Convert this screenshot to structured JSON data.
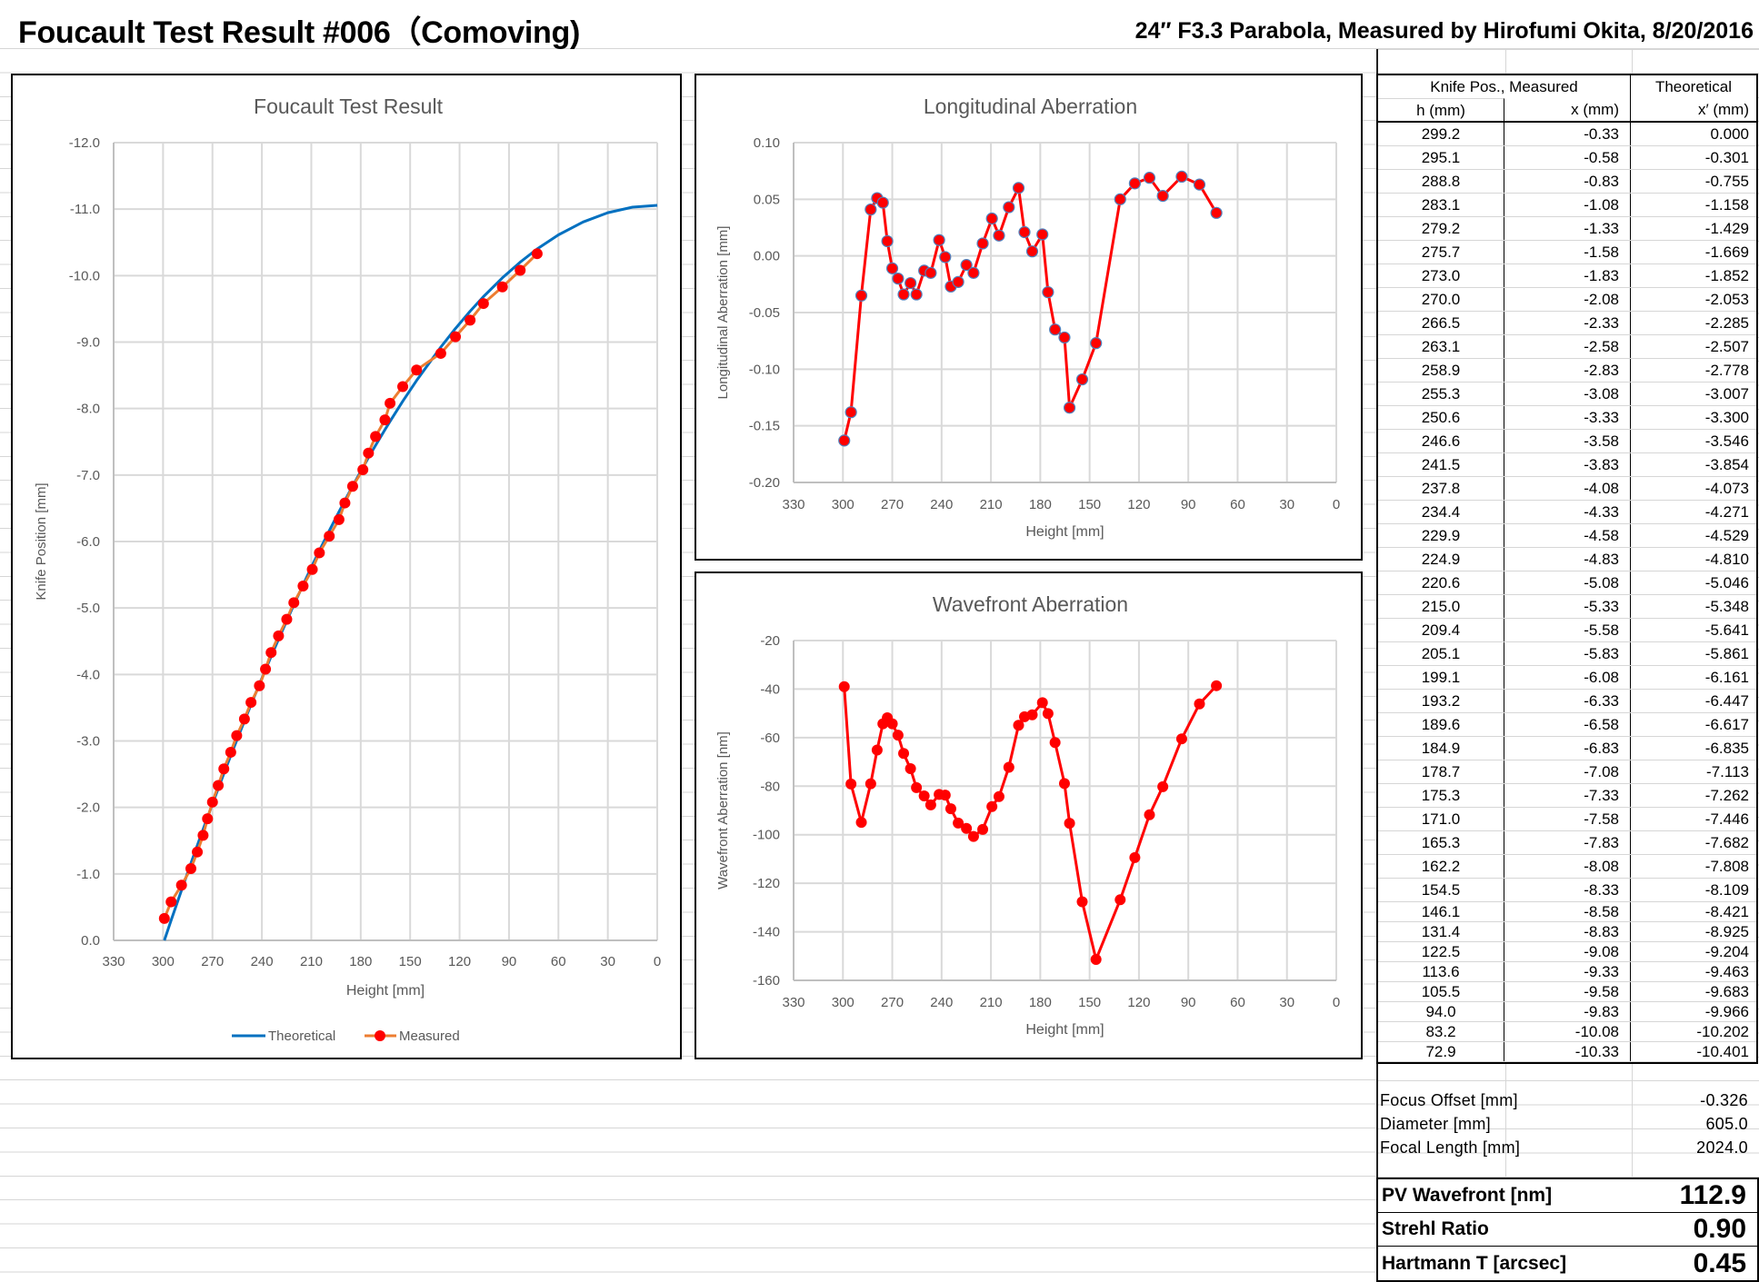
{
  "sheet": {
    "title": "Foucault Test Result #006（Comoving)",
    "subtitle": "24″ F3.3 Parabola, Measured by Hirofumi Okita, 8/20/2016"
  },
  "chart_data": [
    {
      "type": "line",
      "title": "Foucault Test Result",
      "xlabel": "Height [mm]",
      "ylabel": "Knife Position [mm]",
      "xlim": [
        330,
        0
      ],
      "ylim": [
        0,
        -12
      ],
      "x_reversed": true,
      "grid": true,
      "legend_position": "bottom",
      "x_tick_labels": [
        "330",
        "300",
        "270",
        "240",
        "210",
        "180",
        "150",
        "120",
        "90",
        "60",
        "30",
        "0"
      ],
      "y_tick_labels": [
        "-12.0",
        "-11.0",
        "-10.0",
        "-9.0",
        "-8.0",
        "-7.0",
        "-6.0",
        "-5.0",
        "-4.0",
        "-3.0",
        "-2.0",
        "-1.0",
        "0.0"
      ],
      "series": [
        {
          "name": "Theoretical",
          "color": "#0070C0",
          "marker": "none",
          "x": [
            299.2,
            295.1,
            288.8,
            283.1,
            279.2,
            275.7,
            273.0,
            270.0,
            266.5,
            263.1,
            258.9,
            255.3,
            250.6,
            246.6,
            241.5,
            237.8,
            234.4,
            229.9,
            224.9,
            220.6,
            215.0,
            209.4,
            205.1,
            199.1,
            193.2,
            189.6,
            184.9,
            178.7,
            175.3,
            171.0,
            165.3,
            162.2,
            154.5,
            146.1,
            131.4,
            122.5,
            113.6,
            105.5,
            94.0,
            83.2,
            72.9,
            60,
            45,
            30,
            15,
            0
          ],
          "y": [
            0.0,
            -0.301,
            -0.755,
            -1.158,
            -1.429,
            -1.669,
            -1.852,
            -2.053,
            -2.285,
            -2.507,
            -2.778,
            -3.007,
            -3.3,
            -3.546,
            -3.854,
            -4.073,
            -4.271,
            -4.529,
            -4.81,
            -5.046,
            -5.348,
            -5.641,
            -5.861,
            -6.161,
            -6.447,
            -6.617,
            -6.835,
            -7.113,
            -7.262,
            -7.446,
            -7.682,
            -7.808,
            -8.109,
            -8.421,
            -8.925,
            -9.204,
            -9.463,
            -9.683,
            -9.966,
            -10.202,
            -10.401,
            -10.613,
            -10.807,
            -10.946,
            -11.03,
            -11.057
          ]
        },
        {
          "name": "Measured",
          "color": "#ED7D31",
          "marker_color": "#FF0000",
          "x": [
            299.2,
            295.1,
            288.8,
            283.1,
            279.2,
            275.7,
            273.0,
            270.0,
            266.5,
            263.1,
            258.9,
            255.3,
            250.6,
            246.6,
            241.5,
            237.8,
            234.4,
            229.9,
            224.9,
            220.6,
            215.0,
            209.4,
            205.1,
            199.1,
            193.2,
            189.6,
            184.9,
            178.7,
            175.3,
            171.0,
            165.3,
            162.2,
            154.5,
            146.1,
            131.4,
            122.5,
            113.6,
            105.5,
            94.0,
            83.2,
            72.9
          ],
          "y": [
            -0.33,
            -0.58,
            -0.83,
            -1.08,
            -1.33,
            -1.58,
            -1.83,
            -2.08,
            -2.33,
            -2.58,
            -2.83,
            -3.08,
            -3.33,
            -3.58,
            -3.83,
            -4.08,
            -4.33,
            -4.58,
            -4.83,
            -5.08,
            -5.33,
            -5.58,
            -5.83,
            -6.08,
            -6.33,
            -6.58,
            -6.83,
            -7.08,
            -7.33,
            -7.58,
            -7.83,
            -8.08,
            -8.33,
            -8.58,
            -8.83,
            -9.08,
            -9.33,
            -9.58,
            -9.83,
            -10.08,
            -10.33
          ]
        }
      ]
    },
    {
      "type": "line",
      "title": "Longitudinal Aberration",
      "xlabel": "Height [mm]",
      "ylabel": "Longitudinal Aberration [mm]",
      "xlim": [
        330,
        0
      ],
      "ylim": [
        -0.2,
        0.1
      ],
      "x_reversed": true,
      "grid": true,
      "x_tick_labels": [
        "330",
        "300",
        "270",
        "240",
        "210",
        "180",
        "150",
        "120",
        "90",
        "60",
        "30",
        "0"
      ],
      "y_tick_labels": [
        "0.10",
        "0.05",
        "0.00",
        "-0.05",
        "-0.10",
        "-0.15",
        "-0.20"
      ],
      "series": [
        {
          "color": "#FF0000",
          "marker_color": "#FF0000",
          "marker_edge": "#4F81BD",
          "x": [
            299.2,
            295.1,
            288.8,
            283.1,
            279.2,
            275.7,
            273.0,
            270.0,
            266.5,
            263.1,
            258.9,
            255.3,
            250.6,
            246.6,
            241.5,
            237.8,
            234.4,
            229.9,
            224.9,
            220.6,
            215.0,
            209.4,
            205.1,
            199.1,
            193.2,
            189.6,
            184.9,
            178.7,
            175.3,
            171.0,
            165.3,
            162.2,
            154.5,
            146.1,
            131.4,
            122.5,
            113.6,
            105.5,
            94.0,
            83.2,
            72.9
          ],
          "y": [
            -0.163,
            -0.138,
            -0.035,
            0.041,
            0.051,
            0.047,
            0.013,
            -0.011,
            -0.02,
            -0.034,
            -0.024,
            -0.034,
            -0.013,
            -0.015,
            0.014,
            -0.001,
            -0.027,
            -0.023,
            -0.008,
            -0.015,
            0.011,
            0.033,
            0.018,
            0.043,
            0.06,
            0.021,
            0.004,
            0.019,
            -0.032,
            -0.065,
            -0.072,
            -0.134,
            -0.109,
            -0.077,
            0.05,
            0.064,
            0.069,
            0.053,
            0.07,
            0.063,
            0.038
          ]
        }
      ]
    },
    {
      "type": "line",
      "title": "Wavefront Aberration",
      "xlabel": "Height [mm]",
      "ylabel": "Wavefront Aberration [nm]",
      "xlim": [
        330,
        0
      ],
      "ylim": [
        -160,
        -20
      ],
      "x_reversed": true,
      "grid": true,
      "x_tick_labels": [
        "330",
        "300",
        "270",
        "240",
        "210",
        "180",
        "150",
        "120",
        "90",
        "60",
        "30",
        "0"
      ],
      "y_tick_labels": [
        "-20",
        "-40",
        "-60",
        "-80",
        "-100",
        "-120",
        "-140",
        "-160"
      ],
      "series": [
        {
          "color": "#FF0000",
          "marker_color": "#FF0000",
          "x": [
            299.2,
            295.1,
            288.8,
            283.1,
            279.2,
            275.7,
            273.0,
            270.0,
            266.5,
            263.1,
            258.9,
            255.3,
            250.6,
            246.6,
            241.5,
            237.8,
            234.4,
            229.9,
            224.9,
            220.6,
            215.0,
            209.4,
            205.1,
            199.1,
            193.2,
            189.6,
            184.9,
            178.7,
            175.3,
            171.0,
            165.3,
            162.2,
            154.5,
            146.1,
            131.4,
            122.5,
            113.6,
            105.5,
            94.0,
            83.2,
            72.9
          ],
          "y": [
            -39.0,
            -79.1,
            -94.9,
            -79.0,
            -65.1,
            -54.3,
            -51.8,
            -54.3,
            -59.0,
            -66.5,
            -72.8,
            -80.6,
            -84.0,
            -87.7,
            -83.4,
            -83.7,
            -89.3,
            -95.2,
            -97.4,
            -100.7,
            -97.8,
            -88.4,
            -84.3,
            -72.2,
            -54.9,
            -51.4,
            -50.6,
            -45.6,
            -50.1,
            -62.0,
            -78.9,
            -95.3,
            -127.6,
            -151.4,
            -126.8,
            -109.4,
            -91.8,
            -80.2,
            -60.5,
            -46.1,
            -38.6
          ]
        }
      ]
    }
  ],
  "table": {
    "group_header_measured": "Knife Pos., Measured",
    "group_header_theoretical": "Theoretical",
    "col_h": "h (mm)",
    "col_x": "x (mm)",
    "col_xt": "x′ (mm)",
    "rows": [
      [
        "299.2",
        "-0.33",
        "0.000"
      ],
      [
        "295.1",
        "-0.58",
        "-0.301"
      ],
      [
        "288.8",
        "-0.83",
        "-0.755"
      ],
      [
        "283.1",
        "-1.08",
        "-1.158"
      ],
      [
        "279.2",
        "-1.33",
        "-1.429"
      ],
      [
        "275.7",
        "-1.58",
        "-1.669"
      ],
      [
        "273.0",
        "-1.83",
        "-1.852"
      ],
      [
        "270.0",
        "-2.08",
        "-2.053"
      ],
      [
        "266.5",
        "-2.33",
        "-2.285"
      ],
      [
        "263.1",
        "-2.58",
        "-2.507"
      ],
      [
        "258.9",
        "-2.83",
        "-2.778"
      ],
      [
        "255.3",
        "-3.08",
        "-3.007"
      ],
      [
        "250.6",
        "-3.33",
        "-3.300"
      ],
      [
        "246.6",
        "-3.58",
        "-3.546"
      ],
      [
        "241.5",
        "-3.83",
        "-3.854"
      ],
      [
        "237.8",
        "-4.08",
        "-4.073"
      ],
      [
        "234.4",
        "-4.33",
        "-4.271"
      ],
      [
        "229.9",
        "-4.58",
        "-4.529"
      ],
      [
        "224.9",
        "-4.83",
        "-4.810"
      ],
      [
        "220.6",
        "-5.08",
        "-5.046"
      ],
      [
        "215.0",
        "-5.33",
        "-5.348"
      ],
      [
        "209.4",
        "-5.58",
        "-5.641"
      ],
      [
        "205.1",
        "-5.83",
        "-5.861"
      ],
      [
        "199.1",
        "-6.08",
        "-6.161"
      ],
      [
        "193.2",
        "-6.33",
        "-6.447"
      ],
      [
        "189.6",
        "-6.58",
        "-6.617"
      ],
      [
        "184.9",
        "-6.83",
        "-6.835"
      ],
      [
        "178.7",
        "-7.08",
        "-7.113"
      ],
      [
        "175.3",
        "-7.33",
        "-7.262"
      ],
      [
        "171.0",
        "-7.58",
        "-7.446"
      ],
      [
        "165.3",
        "-7.83",
        "-7.682"
      ],
      [
        "162.2",
        "-8.08",
        "-7.808"
      ],
      [
        "154.5",
        "-8.33",
        "-8.109"
      ],
      [
        "146.1",
        "-8.58",
        "-8.421"
      ],
      [
        "131.4",
        "-8.83",
        "-8.925"
      ],
      [
        "122.5",
        "-9.08",
        "-9.204"
      ],
      [
        "113.6",
        "-9.33",
        "-9.463"
      ],
      [
        "105.5",
        "-9.58",
        "-9.683"
      ],
      [
        "94.0",
        "-9.83",
        "-9.966"
      ],
      [
        "83.2",
        "-10.08",
        "-10.202"
      ],
      [
        "72.9",
        "-10.33",
        "-10.401"
      ]
    ]
  },
  "summary": {
    "focus_offset_label": "Focus Offset [mm]",
    "focus_offset": "-0.326",
    "diameter_label": "Diameter [mm]",
    "diameter": "605.0",
    "focal_length_label": "Focal Length [mm]",
    "focal_length": "2024.0",
    "pv_label": "PV Wavefront [nm]",
    "pv": "112.9",
    "strehl_label": "Strehl Ratio",
    "strehl": "0.90",
    "hartmann_label": "Hartmann T [arcsec]",
    "hartmann": "0.45"
  }
}
